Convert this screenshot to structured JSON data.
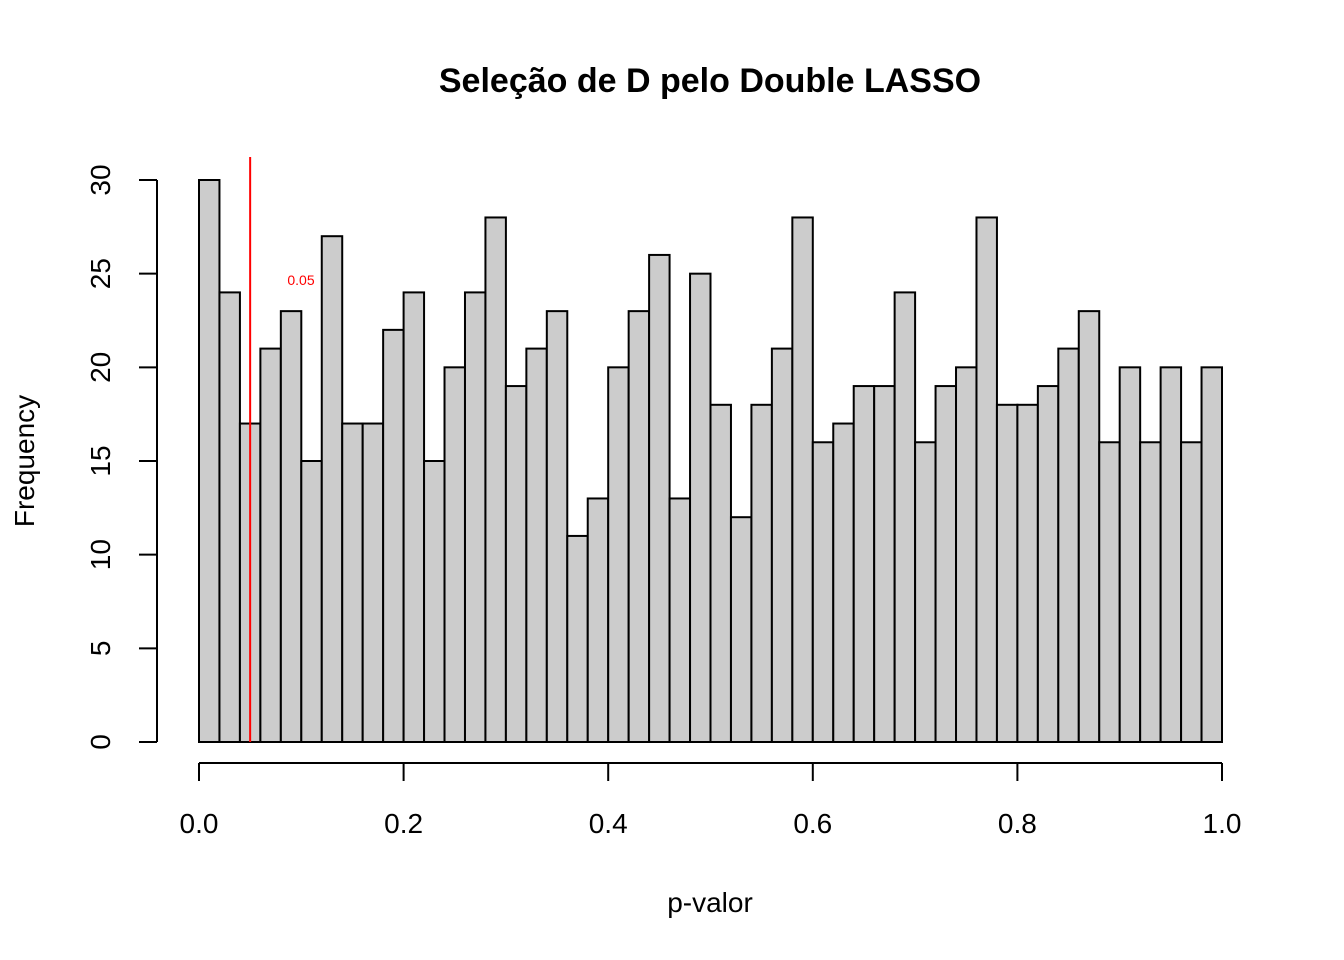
{
  "chart_data": {
    "type": "bar",
    "title": "Seleção de D pelo Double LASSO",
    "xlabel": "p-valor",
    "ylabel": "Frequency",
    "xlim": [
      0.0,
      1.0
    ],
    "ylim": [
      0,
      30
    ],
    "bin_width": 0.02,
    "x_ticks": [
      "0.0",
      "0.2",
      "0.4",
      "0.6",
      "0.8",
      "1.0"
    ],
    "y_ticks": [
      "0",
      "5",
      "10",
      "15",
      "20",
      "25",
      "30"
    ],
    "bins_start": [
      0.0,
      0.02,
      0.04,
      0.06,
      0.08,
      0.1,
      0.12,
      0.14,
      0.16,
      0.18,
      0.2,
      0.22,
      0.24,
      0.26,
      0.28,
      0.3,
      0.32,
      0.34,
      0.36,
      0.38,
      0.4,
      0.42,
      0.44,
      0.46,
      0.48,
      0.5,
      0.52,
      0.54,
      0.56,
      0.58,
      0.6,
      0.62,
      0.64,
      0.66,
      0.68,
      0.7,
      0.72,
      0.74,
      0.76,
      0.78,
      0.8,
      0.82,
      0.84,
      0.86,
      0.88,
      0.9,
      0.92,
      0.94,
      0.96,
      0.98
    ],
    "values": [
      30,
      24,
      17,
      21,
      23,
      15,
      27,
      17,
      17,
      22,
      24,
      15,
      20,
      24,
      28,
      19,
      21,
      23,
      11,
      13,
      20,
      23,
      26,
      13,
      25,
      18,
      12,
      18,
      21,
      28,
      16,
      17,
      19,
      19,
      24,
      16,
      19,
      20,
      28,
      18,
      18,
      19,
      21,
      23,
      16,
      20,
      16,
      20,
      16,
      20
    ],
    "bar_color": "#cccccc",
    "reference_line": {
      "x": 0.05,
      "label": "0.05",
      "color": "#ff0000"
    },
    "grid": false
  }
}
